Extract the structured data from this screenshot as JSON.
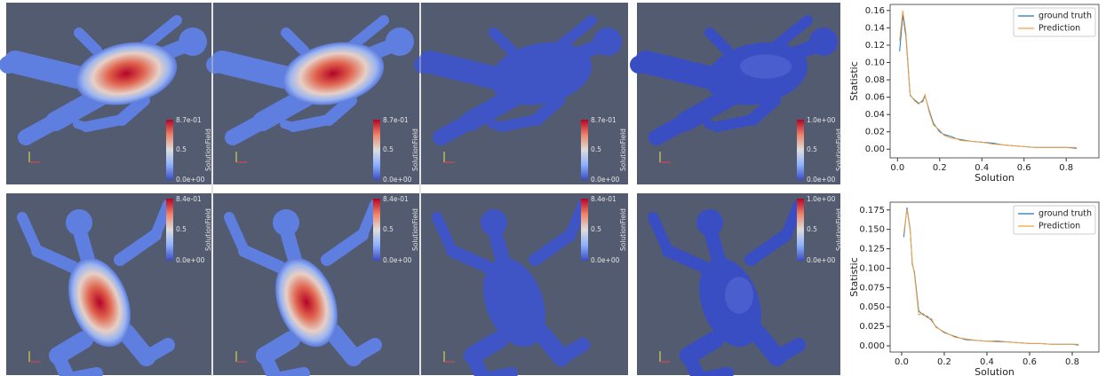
{
  "panels": [
    [
      {
        "max": "8.7e-01",
        "mid": "0.5",
        "min": "0.0e+00",
        "field": "SolutionField"
      },
      {
        "max": "8.7e-01",
        "mid": "0.5",
        "min": "0.0e+00",
        "field": "SolutionField"
      },
      {
        "max": "8.7e-01",
        "mid": "0.5",
        "min": "0.0e+00",
        "field": "SolutionField"
      },
      {
        "max": "1.0e+00",
        "mid": "0.5",
        "min": "0.0e+00",
        "field": "SolutionField"
      }
    ],
    [
      {
        "max": "8.4e-01",
        "mid": "0.5",
        "min": "0.0e+00",
        "field": "SolutionField"
      },
      {
        "max": "8.4e-01",
        "mid": "0.5",
        "min": "0.0e+00",
        "field": "SolutionField"
      },
      {
        "max": "8.4e-01",
        "mid": "0.5",
        "min": "0.0e+00",
        "field": "SolutionField"
      },
      {
        "max": "1.0e+00",
        "mid": "0.5",
        "min": "0.0e+00",
        "field": "SolutionField"
      }
    ]
  ],
  "chart_data": [
    {
      "type": "line",
      "xlabel": "Solution",
      "ylabel": "Statistic",
      "x": [
        0.01,
        0.025,
        0.04,
        0.06,
        0.08,
        0.1,
        0.12,
        0.13,
        0.15,
        0.17,
        0.2,
        0.22,
        0.25,
        0.28,
        0.3,
        0.35,
        0.4,
        0.45,
        0.5,
        0.55,
        0.6,
        0.65,
        0.7,
        0.75,
        0.8,
        0.85
      ],
      "series": [
        {
          "name": "ground truth",
          "color": "#1f77b4",
          "values": [
            0.113,
            0.155,
            0.13,
            0.062,
            0.057,
            0.053,
            0.055,
            0.062,
            0.045,
            0.03,
            0.02,
            0.017,
            0.015,
            0.012,
            0.011,
            0.009,
            0.008,
            0.007,
            0.005,
            0.004,
            0.003,
            0.002,
            0.002,
            0.002,
            0.002,
            0.001
          ]
        },
        {
          "name": "Prediction",
          "color": "#f5a142",
          "values": [
            0.125,
            0.16,
            0.135,
            0.063,
            0.056,
            0.052,
            0.057,
            0.063,
            0.043,
            0.028,
            0.022,
            0.016,
            0.013,
            0.012,
            0.01,
            0.009,
            0.008,
            0.006,
            0.005,
            0.004,
            0.003,
            0.002,
            0.002,
            0.002,
            0.002,
            0.002
          ]
        }
      ],
      "xlim": [
        -0.035,
        0.955
      ],
      "ylim": [
        -0.01,
        0.167
      ],
      "xticks": [
        {
          "value": 0,
          "label": "0.0"
        },
        0.2,
        0.4,
        0.6,
        0.8
      ],
      "yticks": [
        {
          "value": 0,
          "label": "0.00"
        },
        0.02,
        0.04,
        0.06,
        0.08,
        {
          "value": 0.1,
          "label": "0.10"
        },
        0.12,
        0.14,
        0.16
      ],
      "legend": "upper right"
    },
    {
      "type": "line",
      "xlabel": "Solution",
      "ylabel": "Statistic",
      "x": [
        0.01,
        0.025,
        0.04,
        0.05,
        0.06,
        0.08,
        0.1,
        0.12,
        0.14,
        0.16,
        0.2,
        0.25,
        0.3,
        0.35,
        0.4,
        0.45,
        0.5,
        0.55,
        0.6,
        0.65,
        0.7,
        0.75,
        0.8,
        0.83
      ],
      "series": [
        {
          "name": "ground truth",
          "color": "#1f77b4",
          "values": [
            0.14,
            0.178,
            0.15,
            0.105,
            0.095,
            0.045,
            0.04,
            0.038,
            0.033,
            0.025,
            0.017,
            0.012,
            0.008,
            0.007,
            0.006,
            0.006,
            0.005,
            0.004,
            0.003,
            0.003,
            0.002,
            0.002,
            0.002,
            0.001
          ]
        },
        {
          "name": "Prediction",
          "color": "#f5a142",
          "values": [
            0.145,
            0.176,
            0.148,
            0.108,
            0.092,
            0.04,
            0.042,
            0.036,
            0.035,
            0.024,
            0.018,
            0.011,
            0.009,
            0.007,
            0.006,
            0.005,
            0.005,
            0.004,
            0.003,
            0.003,
            0.002,
            0.002,
            0.002,
            0.002
          ]
        }
      ],
      "xlim": [
        -0.054,
        0.925
      ],
      "ylim": [
        -0.008,
        0.185
      ],
      "xticks": [
        {
          "value": 0,
          "label": "0.0"
        },
        0.2,
        0.4,
        0.6,
        0.8
      ],
      "yticks": [
        {
          "value": 0,
          "label": "0.000"
        },
        0.025,
        {
          "value": 0.05,
          "label": "0.050"
        },
        0.075,
        {
          "value": 0.1,
          "label": "0.100"
        },
        0.125,
        {
          "value": 0.15,
          "label": "0.150"
        },
        0.175
      ],
      "legend": "upper right"
    }
  ]
}
